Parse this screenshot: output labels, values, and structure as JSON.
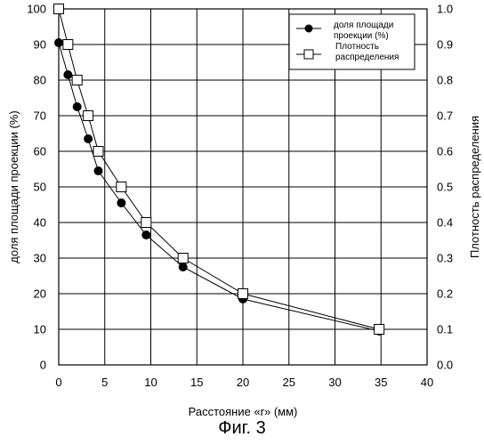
{
  "chart_data": {
    "type": "line",
    "title": "",
    "xlabel": "Расстояние «r» (мм)",
    "ylabel_left": "доля площади проекции (%)",
    "ylabel_right": "Плотность распределения",
    "xlim": [
      0,
      40
    ],
    "ylim_left": [
      0,
      100
    ],
    "ylim_right": [
      0,
      1.0
    ],
    "x_ticks": [
      "0",
      "5",
      "10",
      "15",
      "20",
      "25",
      "30",
      "35",
      "40"
    ],
    "y_left_ticks": [
      "0",
      "10",
      "20",
      "30",
      "40",
      "50",
      "60",
      "70",
      "80",
      "90",
      "100"
    ],
    "y_right_ticks": [
      "0.0",
      "0.1",
      "0.2",
      "0.3",
      "0.4",
      "0.5",
      "0.6",
      "0.7",
      "0.8",
      "0.9",
      "1.0"
    ],
    "grid": true,
    "legend_position": "top-right",
    "series": [
      {
        "name": "доля площади проекции (%)",
        "axis": "left",
        "marker": "filled-circle",
        "x": [
          0.0,
          1.0,
          2.0,
          3.2,
          4.3,
          6.8,
          9.5,
          13.5,
          20.0,
          34.8
        ],
        "y": [
          90.5,
          81.5,
          72.5,
          63.5,
          54.5,
          45.5,
          36.5,
          27.5,
          18.5,
          9.5
        ]
      },
      {
        "name": "Плотность распределения",
        "axis": "right",
        "marker": "open-square",
        "x": [
          0.0,
          1.0,
          2.0,
          3.2,
          4.3,
          6.8,
          9.5,
          13.5,
          20.0,
          34.8
        ],
        "y": [
          1.0,
          0.9,
          0.8,
          0.7,
          0.6,
          0.5,
          0.4,
          0.3,
          0.2,
          0.1
        ]
      }
    ],
    "legend": [
      {
        "lines": [
          "доля площади",
          "проекции (%)"
        ]
      },
      {
        "lines": [
          "Плотность",
          "распределения"
        ]
      }
    ]
  },
  "caption": "Фиг. 3"
}
